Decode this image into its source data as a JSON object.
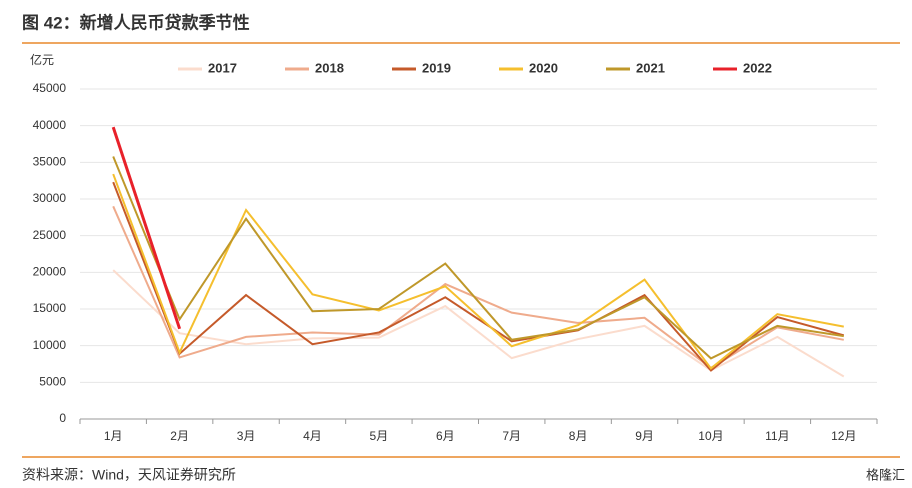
{
  "header": {
    "title": "图 42：新增人民币贷款季节性"
  },
  "chart_data": {
    "type": "line",
    "y_unit": "亿元",
    "categories": [
      "1月",
      "2月",
      "3月",
      "4月",
      "5月",
      "6月",
      "7月",
      "8月",
      "9月",
      "10月",
      "11月",
      "12月"
    ],
    "series": [
      {
        "name": "2017",
        "color": "#fbdccd",
        "values": [
          20300,
          11700,
          10200,
          11000,
          11100,
          15400,
          8300,
          10900,
          12700,
          6632,
          11200,
          5800
        ]
      },
      {
        "name": "2018",
        "color": "#efab8c",
        "values": [
          29000,
          8400,
          11200,
          11800,
          11500,
          18400,
          14500,
          13100,
          13800,
          6970,
          12500,
          10800
        ]
      },
      {
        "name": "2019",
        "color": "#c55a2a",
        "values": [
          32300,
          8900,
          16900,
          10200,
          11800,
          16600,
          10600,
          12100,
          16900,
          6613,
          13900,
          11400
        ]
      },
      {
        "name": "2020",
        "color": "#f5bf2e",
        "values": [
          33400,
          9057,
          28500,
          17000,
          14800,
          18100,
          9927,
          12800,
          19000,
          6898,
          14300,
          12600
        ]
      },
      {
        "name": "2021",
        "color": "#bf982a",
        "values": [
          35800,
          13600,
          27300,
          14700,
          15000,
          21200,
          10800,
          12200,
          16600,
          8262,
          12700,
          11300
        ]
      },
      {
        "name": "2022",
        "color": "#e8212a",
        "values": [
          39800,
          12300,
          null,
          null,
          null,
          null,
          null,
          null,
          null,
          null,
          null,
          null
        ]
      }
    ],
    "ylim": [
      0,
      45000
    ],
    "yticks": [
      0,
      5000,
      10000,
      15000,
      20000,
      25000,
      30000,
      35000,
      40000,
      45000
    ],
    "grid": true,
    "legend": "top"
  },
  "footer": {
    "source": "资料来源：Wind，天风证券研究所",
    "watermark": "格隆汇"
  }
}
